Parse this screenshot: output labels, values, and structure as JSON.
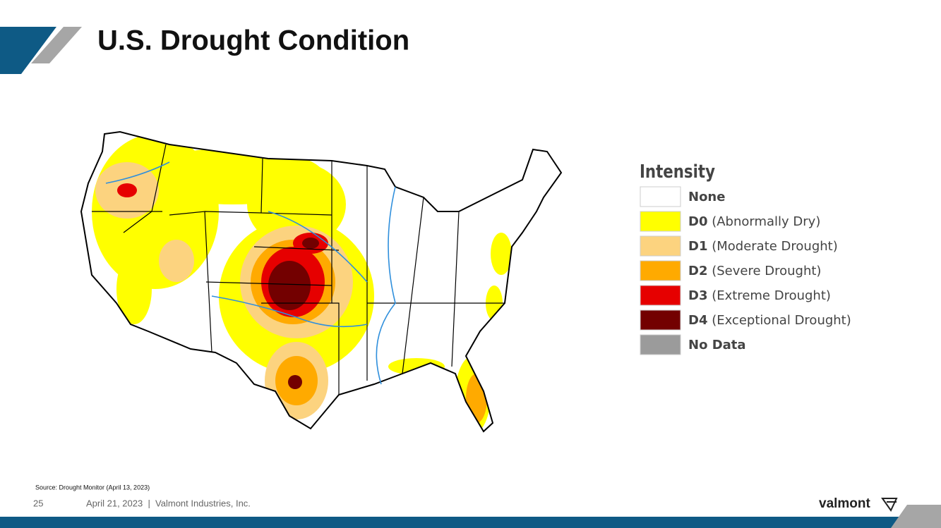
{
  "header": {
    "title": "U.S. Drought Condition"
  },
  "legend": {
    "title": "Intensity",
    "items": [
      {
        "code": "None",
        "color": "#ffffff"
      },
      {
        "code": "D0",
        "label": "(Abnormally Dry)",
        "color": "#ffff00"
      },
      {
        "code": "D1",
        "label": "(Moderate Drought)",
        "color": "#fcd37f"
      },
      {
        "code": "D2",
        "label": "(Severe Drought)",
        "color": "#ffaa00"
      },
      {
        "code": "D3",
        "label": "(Extreme Drought)",
        "color": "#e60000"
      },
      {
        "code": "D4",
        "label": "(Exceptional Drought)",
        "color": "#730000"
      },
      {
        "code": "No Data",
        "color": "#9b9b9b"
      }
    ]
  },
  "footer": {
    "source": "Source: Drought Monitor (April 13, 2023)",
    "page": "25",
    "date_company": "April 21, 2023  |  Valmont Industries, Inc.",
    "logo": "valmont"
  }
}
